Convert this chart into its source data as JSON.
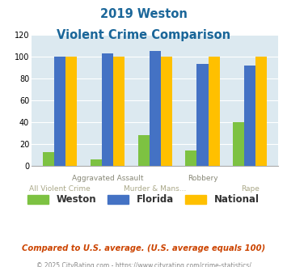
{
  "title_line1": "2019 Weston",
  "title_line2": "Violent Crime Comparison",
  "categories": [
    "All Violent Crime",
    "Aggravated Assault",
    "Murder & Mans...",
    "Robbery",
    "Rape"
  ],
  "top_labels": [
    "",
    "Aggravated Assault",
    "",
    "Robbery",
    ""
  ],
  "bottom_labels": [
    "All Violent Crime",
    "",
    "Murder & Mans...",
    "",
    "Rape"
  ],
  "weston": [
    12,
    6,
    28,
    14,
    40
  ],
  "florida": [
    100,
    103,
    105,
    93,
    92
  ],
  "national": [
    100,
    100,
    100,
    100,
    100
  ],
  "weston_color": "#7dc242",
  "florida_color": "#4472c4",
  "national_color": "#ffc000",
  "title_color": "#1a6699",
  "plot_bg": "#dce9f0",
  "ylim": [
    0,
    120
  ],
  "yticks": [
    0,
    20,
    40,
    60,
    80,
    100,
    120
  ],
  "footer": "Compared to U.S. average. (U.S. average equals 100)",
  "copyright": "© 2025 CityRating.com - https://www.cityrating.com/crime-statistics/",
  "legend_labels": [
    "Weston",
    "Florida",
    "National"
  ]
}
